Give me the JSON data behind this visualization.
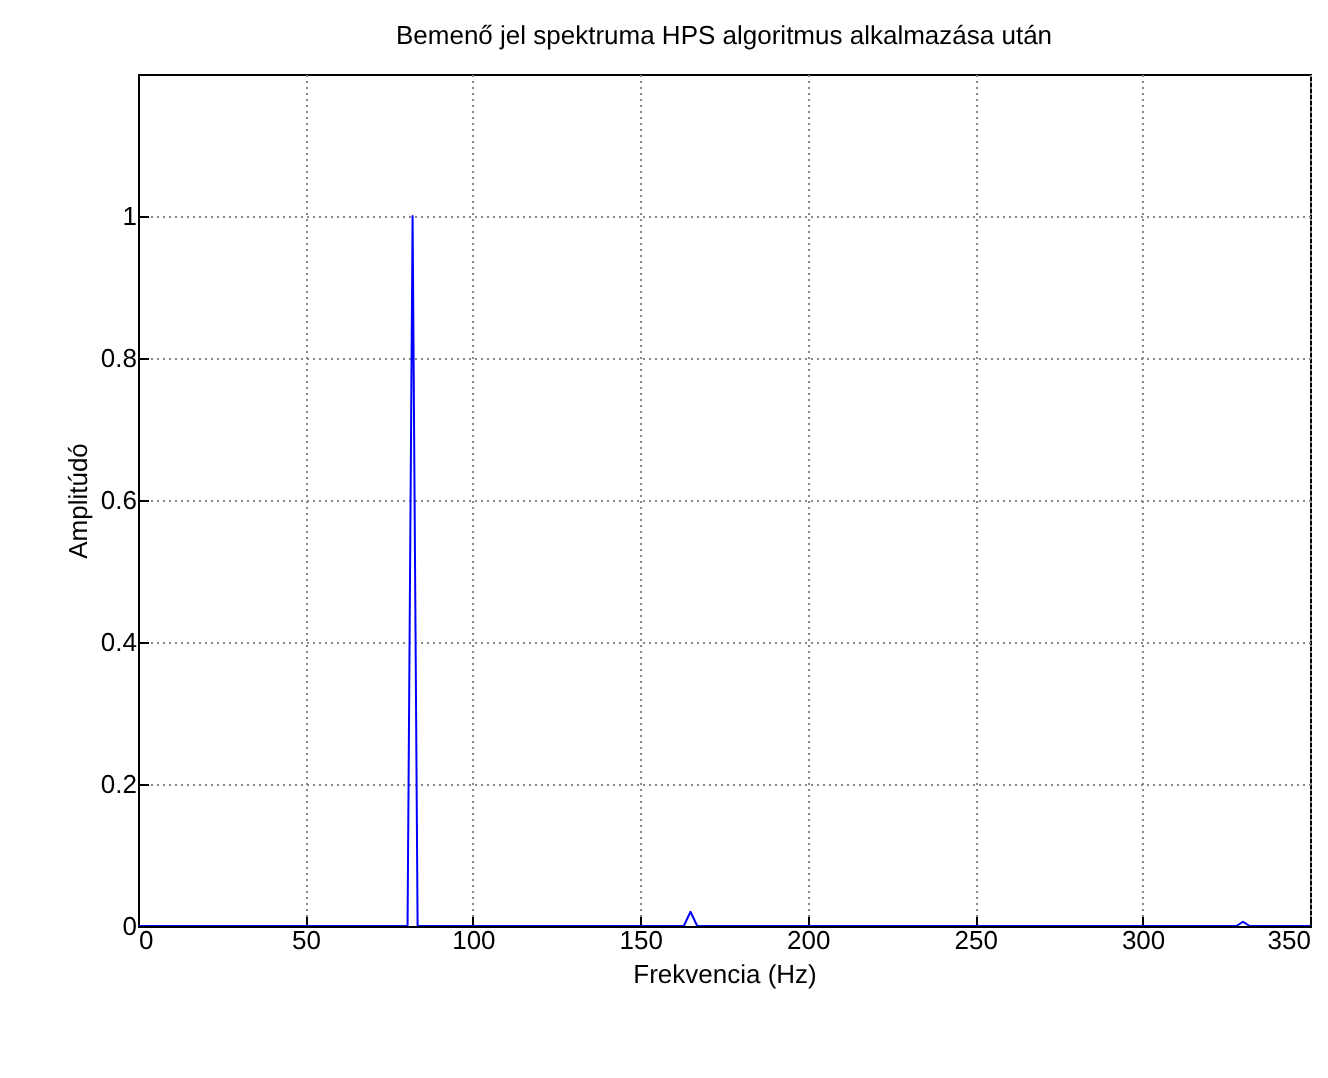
{
  "chart_data": {
    "type": "line",
    "title": "Bemenő jel spektruma HPS algoritmus alkalmazása után",
    "xlabel": "Frekvencia (Hz)",
    "ylabel": "Amplitúdó",
    "x": [
      0,
      80.5,
      82,
      83.5,
      163,
      165,
      167,
      328,
      330,
      332,
      350
    ],
    "series": [
      {
        "color": "#0000ff",
        "values": [
          0,
          0,
          1,
          0,
          0,
          0.02,
          0,
          0,
          0.006,
          0,
          0
        ]
      }
    ],
    "xlim": [
      0,
      350
    ],
    "ylim": [
      0,
      1.2
    ],
    "xticks": [
      0,
      50,
      100,
      150,
      200,
      250,
      300,
      350
    ],
    "yticks": [
      0,
      0.2,
      0.4,
      0.6,
      0.8,
      1
    ],
    "grid": true,
    "line_style": "solid",
    "marker": "none"
  }
}
